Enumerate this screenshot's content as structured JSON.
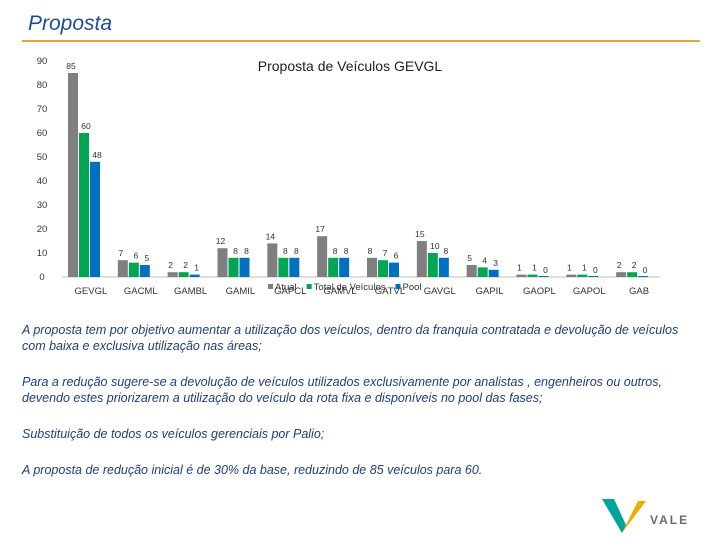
{
  "header": {
    "title": "Proposta"
  },
  "chart_data": {
    "type": "bar",
    "title": "Proposta de Veículos GEVGL",
    "categories": [
      "GEVGL",
      "GACML",
      "GAMBL",
      "GAMIL",
      "GAPCL",
      "GAMVL",
      "GATVL",
      "GAVGL",
      "GAPIL",
      "GAOPL",
      "GAPOL",
      "GAB"
    ],
    "series": [
      {
        "name": "Atual",
        "color": "#7f7f7f",
        "values": [
          85,
          7,
          2,
          12,
          14,
          17,
          8,
          15,
          5,
          1,
          1,
          2
        ]
      },
      {
        "name": "Total de Veículos",
        "color": "#00a651",
        "values": [
          60,
          6,
          2,
          8,
          8,
          8,
          7,
          10,
          4,
          1,
          1,
          2
        ]
      },
      {
        "name": "Pool",
        "color": "#0070c0",
        "values": [
          48,
          5,
          1,
          8,
          8,
          8,
          6,
          8,
          3,
          0,
          0,
          0
        ]
      }
    ],
    "yticks": [
      0,
      10,
      20,
      30,
      40,
      50,
      60,
      70,
      80,
      90
    ],
    "ylim": [
      0,
      90
    ],
    "xlabel": "",
    "ylabel": "",
    "legend_position": "bottom-center"
  },
  "text": {
    "p1": "A proposta tem por objetivo aumentar a utilização dos veículos, dentro da franquia contratada e devolução de veículos com baixa e exclusiva utilização nas áreas;",
    "p2": " Para a redução sugere-se a devolução de veículos utilizados exclusivamente por analistas , engenheiros ou outros, devendo estes priorizarem a utilização do veículo  da rota fixa e disponíveis no pool das fases;",
    "p3": "Substituição de todos os veículos gerenciais por Palio;",
    "p4": "A proposta de redução inicial  é de 30% da base, reduzindo de 85 veículos para 60."
  },
  "logo": {
    "name": "vale-logo-icon",
    "text": "VALE",
    "colors": [
      "#00a39a",
      "#f2a900"
    ]
  }
}
